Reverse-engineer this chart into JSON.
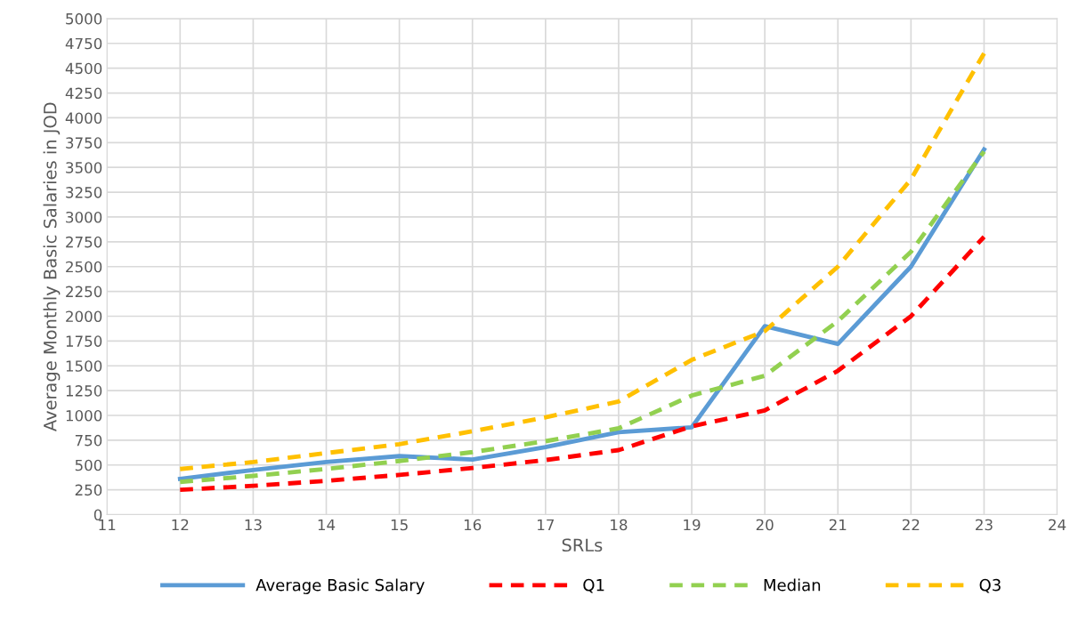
{
  "chart_data": {
    "type": "line",
    "xlabel": "SRLs",
    "ylabel": "Average Monthly Basic Salaries in JOD",
    "x": [
      12,
      13,
      14,
      15,
      16,
      17,
      18,
      19,
      20,
      21,
      22,
      23
    ],
    "series": [
      {
        "name": "Average Basic Salary",
        "color": "#5b9bd5",
        "line_style": "solid",
        "values": [
          360,
          450,
          530,
          590,
          555,
          680,
          830,
          880,
          1900,
          1720,
          2500,
          3680
        ]
      },
      {
        "name": "Q1",
        "color": "#ff0000",
        "line_style": "dashed",
        "values": [
          250,
          290,
          340,
          400,
          470,
          550,
          650,
          890,
          1050,
          1450,
          2000,
          2800
        ]
      },
      {
        "name": "Median",
        "color": "#92d050",
        "line_style": "dashed",
        "values": [
          330,
          390,
          460,
          540,
          630,
          740,
          870,
          1200,
          1400,
          1950,
          2650,
          3660
        ]
      },
      {
        "name": "Q3",
        "color": "#ffc000",
        "line_style": "dashed",
        "values": [
          460,
          530,
          620,
          710,
          840,
          980,
          1140,
          1560,
          1850,
          2500,
          3380,
          4650
        ]
      }
    ],
    "xlim": [
      11,
      24
    ],
    "xticks": [
      11,
      12,
      13,
      14,
      15,
      16,
      17,
      18,
      19,
      20,
      21,
      22,
      23,
      24
    ],
    "ylim": [
      0,
      5000
    ],
    "yticks": [
      0,
      250,
      500,
      750,
      1000,
      1250,
      1500,
      1750,
      2000,
      2250,
      2500,
      2750,
      3000,
      3250,
      3500,
      3750,
      4000,
      4250,
      4500,
      4750,
      5000
    ],
    "grid": true,
    "legend": "bottom",
    "marker": "none"
  }
}
